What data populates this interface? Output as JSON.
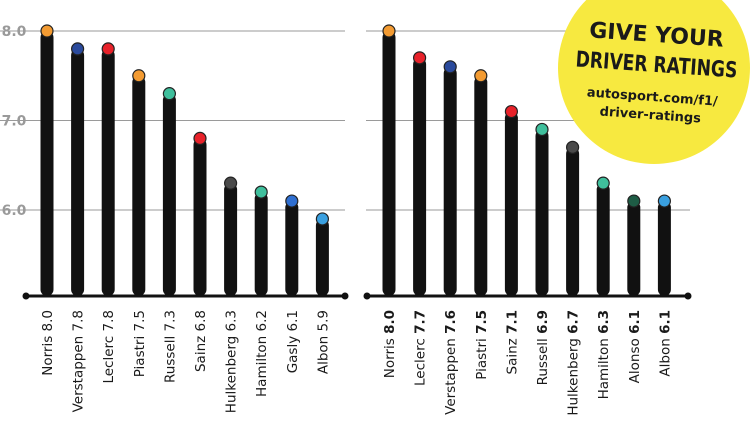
{
  "promo": {
    "line1": "GIVE YOUR",
    "line2": "DRIVER RATINGS",
    "url1": "autosport.com/f1/",
    "url2": "driver-ratings",
    "bg_color": "#f7e940"
  },
  "chart_data": [
    {
      "type": "bar",
      "ylim": [
        5.0,
        8.0
      ],
      "yticks": [
        "8.0",
        "7.0",
        "6.0"
      ],
      "grid": true,
      "bold_values": false,
      "categories": [
        "Norris",
        "Verstappen",
        "Leclerc",
        "Piastri",
        "Russell",
        "Sainz",
        "Hulkenberg",
        "Hamilton",
        "Gasly",
        "Albon"
      ],
      "values": [
        8.0,
        7.8,
        7.8,
        7.5,
        7.3,
        6.8,
        6.3,
        6.2,
        6.1,
        5.9
      ],
      "value_labels": [
        "8.0",
        "7.8",
        "7.8",
        "7.5",
        "7.3",
        "6.8",
        "6.3",
        "6.2",
        "6.1",
        "5.9"
      ],
      "colors": [
        "#f39b32",
        "#2a4a9c",
        "#e8222a",
        "#f39b32",
        "#3fbf9c",
        "#e8222a",
        "#4a4a4a",
        "#3fbf9c",
        "#2f6fd1",
        "#3aa0e0"
      ]
    },
    {
      "type": "bar",
      "ylim": [
        5.0,
        8.0
      ],
      "grid": true,
      "bold_values": true,
      "categories": [
        "Norris",
        "Leclerc",
        "Verstappen",
        "Piastri",
        "Sainz",
        "Russell",
        "Hulkenberg",
        "Hamilton",
        "Alonso",
        "Albon"
      ],
      "values": [
        8.0,
        7.7,
        7.6,
        7.5,
        7.1,
        6.9,
        6.7,
        6.3,
        6.1,
        6.1
      ],
      "value_labels": [
        "8.0",
        "7.7",
        "7.6",
        "7.5",
        "7.1",
        "6.9",
        "6.7",
        "6.3",
        "6.1",
        "6.1"
      ],
      "colors": [
        "#f39b32",
        "#e8222a",
        "#2a4a9c",
        "#f39b32",
        "#e8222a",
        "#3fbf9c",
        "#4a4a4a",
        "#3fbf9c",
        "#1e5c45",
        "#3aa0e0"
      ]
    }
  ]
}
